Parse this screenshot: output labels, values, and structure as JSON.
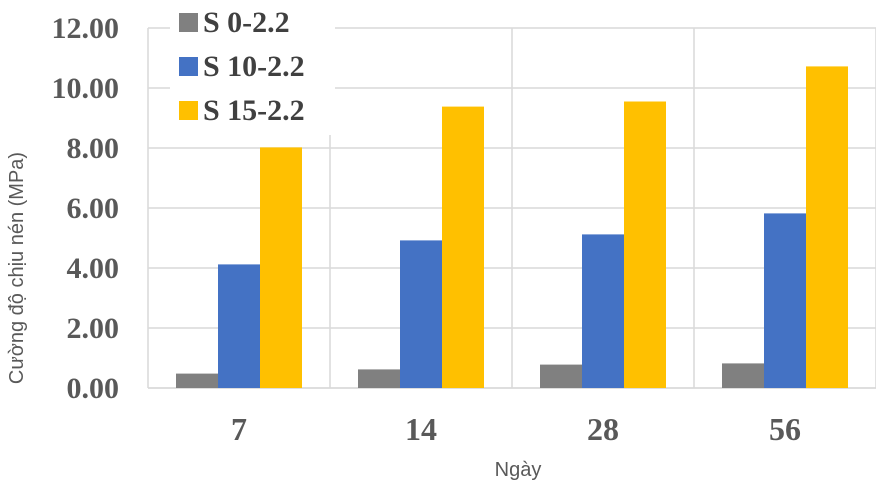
{
  "chart_data": {
    "type": "bar",
    "categories": [
      "7",
      "14",
      "28",
      "56"
    ],
    "series": [
      {
        "name": "S 0-2.2",
        "values": [
          0.48,
          0.62,
          0.78,
          0.82
        ],
        "color": "#808080"
      },
      {
        "name": "S 10-2.2",
        "values": [
          4.12,
          4.92,
          5.12,
          5.82
        ],
        "color": "#4472c4"
      },
      {
        "name": "S 15-2.2",
        "values": [
          8.02,
          9.38,
          9.55,
          10.72
        ],
        "color": "#ffc000"
      }
    ],
    "yticks": [
      "0.00",
      "2.00",
      "4.00",
      "6.00",
      "8.00",
      "10.00",
      "12.00"
    ],
    "xlabel": "Ngày",
    "ylabel": "Cường độ chịu nén (MPa)",
    "ylim": [
      0,
      12
    ],
    "grid": true,
    "legend": "top-left"
  }
}
